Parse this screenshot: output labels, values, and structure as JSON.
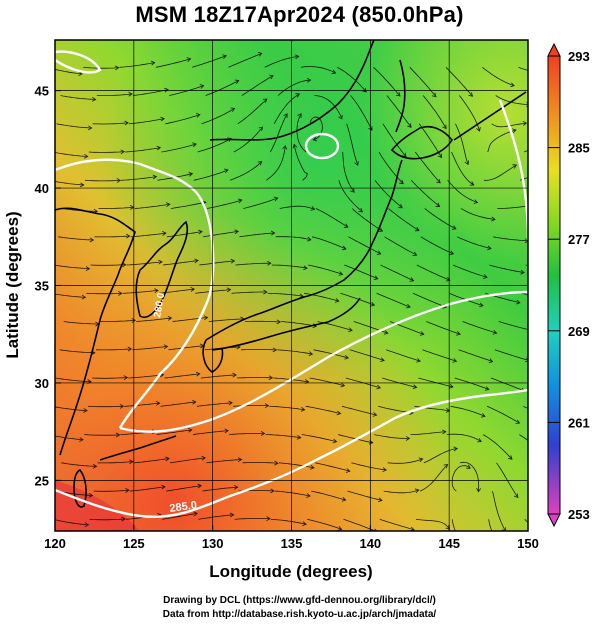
{
  "title": "MSM 18Z17Apr2024 (850.0hPa)",
  "x_axis": {
    "label": "Longitude (degrees)",
    "ticks": [
      "120",
      "125",
      "130",
      "135",
      "140",
      "145",
      "150"
    ]
  },
  "y_axis": {
    "label": "Latitude  (degrees)",
    "ticks": [
      "25",
      "30",
      "35",
      "40",
      "45"
    ]
  },
  "colorbar": {
    "ticks": [
      "293",
      "285",
      "277",
      "269",
      "261",
      "253"
    ],
    "min": 253,
    "max": 293,
    "colors": [
      "#e040c0",
      "#4040d0",
      "#1090e0",
      "#20d0c0",
      "#20c040",
      "#60d020",
      "#c0e020",
      "#f0d020",
      "#f09020",
      "#f04020"
    ]
  },
  "contour_labels": [
    "285.0",
    "280.0"
  ],
  "credits": {
    "line1": "Drawing by DCL (https://www.gfd-dennou.org/library/dcl/)",
    "line2": "Data from http://database.rish.kyoto-u.ac.jp/arch/jmadata/"
  },
  "map": {
    "lon_range": [
      120,
      150
    ],
    "lat_range": [
      22.4,
      47.6
    ],
    "variable": "temperature (K) with wind streamlines",
    "colors": {
      "hot": "#e83a3a",
      "warm": "#f08a2a",
      "mild": "#d8d830",
      "cool": "#30cc40",
      "coast": "#000000",
      "contour": "#ffffff",
      "grid": "#000000"
    }
  }
}
